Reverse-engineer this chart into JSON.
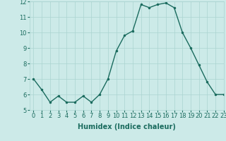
{
  "x": [
    0,
    1,
    2,
    3,
    4,
    5,
    6,
    7,
    8,
    9,
    10,
    11,
    12,
    13,
    14,
    15,
    16,
    17,
    18,
    19,
    20,
    21,
    22,
    23
  ],
  "y": [
    7.0,
    6.3,
    5.5,
    5.9,
    5.5,
    5.5,
    5.9,
    5.5,
    6.0,
    7.0,
    8.8,
    9.8,
    10.1,
    11.8,
    11.6,
    11.8,
    11.9,
    11.6,
    10.0,
    9.0,
    7.9,
    6.8,
    6.0,
    6.0
  ],
  "xlabel": "Humidex (Indice chaleur)",
  "ylim": [
    5,
    12
  ],
  "xlim": [
    -0.5,
    23
  ],
  "yticks": [
    5,
    6,
    7,
    8,
    9,
    10,
    11,
    12
  ],
  "xticks": [
    0,
    1,
    2,
    3,
    4,
    5,
    6,
    7,
    8,
    9,
    10,
    11,
    12,
    13,
    14,
    15,
    16,
    17,
    18,
    19,
    20,
    21,
    22,
    23
  ],
  "line_color": "#1a6b5e",
  "marker": ".",
  "marker_size": 3,
  "bg_color": "#cceae8",
  "grid_color": "#aad4d0",
  "tick_label_fontsize": 6,
  "xlabel_fontsize": 7,
  "linewidth": 1.0
}
